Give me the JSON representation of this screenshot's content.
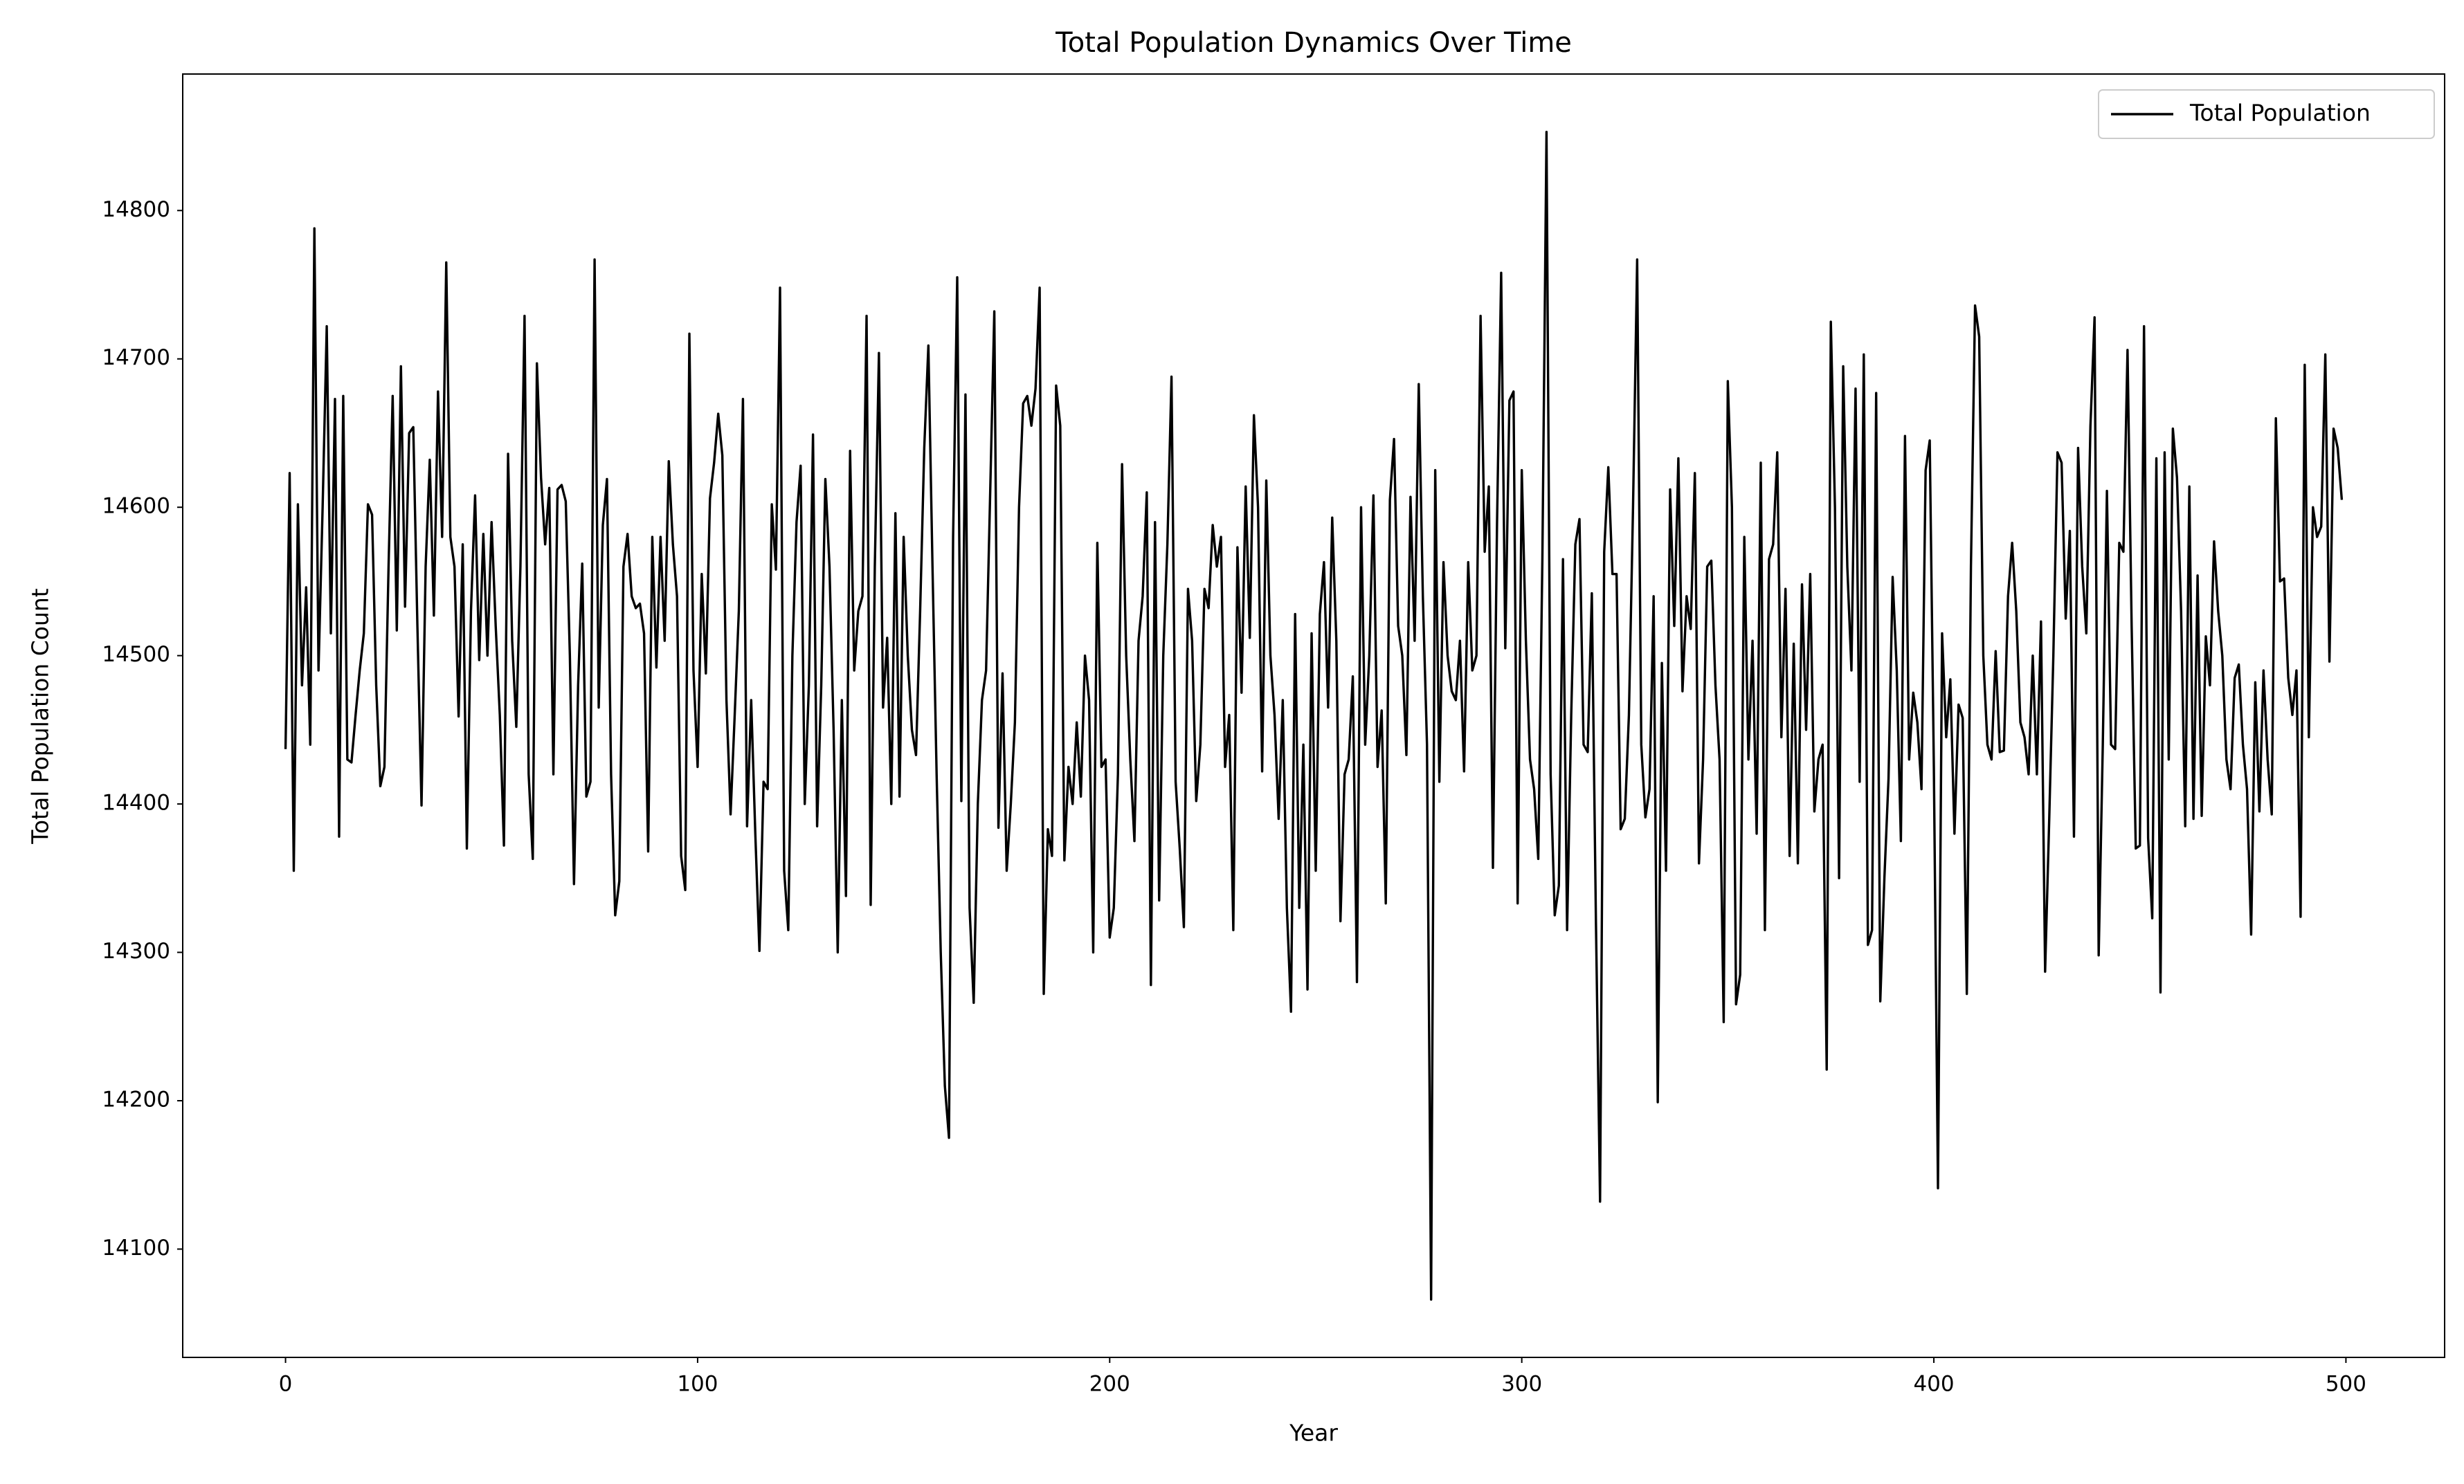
{
  "chart_data": {
    "type": "line",
    "title": "Total Population Dynamics Over Time",
    "xlabel": "Year",
    "ylabel": "Total Population Count",
    "xlim": [
      -24.95,
      523.95
    ],
    "xticks": [
      0,
      100,
      200,
      300,
      400,
      500
    ],
    "ylim": [
      14027,
      14892
    ],
    "yticks": [
      14100,
      14200,
      14300,
      14400,
      14500,
      14600,
      14700,
      14800
    ],
    "legend": "upper right",
    "x": [
      0,
      1,
      2,
      3,
      4,
      5,
      6,
      7,
      8,
      9,
      10,
      11,
      12,
      13,
      14,
      15,
      16,
      17,
      18,
      19,
      20,
      21,
      22,
      23,
      24,
      25,
      26,
      27,
      28,
      29,
      30,
      31,
      32,
      33,
      34,
      35,
      36,
      37,
      38,
      39,
      40,
      41,
      42,
      43,
      44,
      45,
      46,
      47,
      48,
      49,
      50,
      51,
      52,
      53,
      54,
      55,
      56,
      57,
      58,
      59,
      60,
      61,
      62,
      63,
      64,
      65,
      66,
      67,
      68,
      69,
      70,
      71,
      72,
      73,
      74,
      75,
      76,
      77,
      78,
      79,
      80,
      81,
      82,
      83,
      84,
      85,
      86,
      87,
      88,
      89,
      90,
      91,
      92,
      93,
      94,
      95,
      96,
      97,
      98,
      99,
      100,
      101,
      102,
      103,
      104,
      105,
      106,
      107,
      108,
      109,
      110,
      111,
      112,
      113,
      114,
      115,
      116,
      117,
      118,
      119,
      120,
      121,
      122,
      123,
      124,
      125,
      126,
      127,
      128,
      129,
      130,
      131,
      132,
      133,
      134,
      135,
      136,
      137,
      138,
      139,
      140,
      141,
      142,
      143,
      144,
      145,
      146,
      147,
      148,
      149,
      150,
      151,
      152,
      153,
      154,
      155,
      156,
      157,
      158,
      159,
      160,
      161,
      162,
      163,
      164,
      165,
      166,
      167,
      168,
      169,
      170,
      171,
      172,
      173,
      174,
      175,
      176,
      177,
      178,
      179,
      180,
      181,
      182,
      183,
      184,
      185,
      186,
      187,
      188,
      189,
      190,
      191,
      192,
      193,
      194,
      195,
      196,
      197,
      198,
      199,
      200,
      201,
      202,
      203,
      204,
      205,
      206,
      207,
      208,
      209,
      210,
      211,
      212,
      213,
      214,
      215,
      216,
      217,
      218,
      219,
      220,
      221,
      222,
      223,
      224,
      225,
      226,
      227,
      228,
      229,
      230,
      231,
      232,
      233,
      234,
      235,
      236,
      237,
      238,
      239,
      240,
      241,
      242,
      243,
      244,
      245,
      246,
      247,
      248,
      249,
      250,
      251,
      252,
      253,
      254,
      255,
      256,
      257,
      258,
      259,
      260,
      261,
      262,
      263,
      264,
      265,
      266,
      267,
      268,
      269,
      270,
      271,
      272,
      273,
      274,
      275,
      276,
      277,
      278,
      279,
      280,
      281,
      282,
      283,
      284,
      285,
      286,
      287,
      288,
      289,
      290,
      291,
      292,
      293,
      294,
      295,
      296,
      297,
      298,
      299,
      300,
      301,
      302,
      303,
      304,
      305,
      306,
      307,
      308,
      309,
      310,
      311,
      312,
      313,
      314,
      315,
      316,
      317,
      318,
      319,
      320,
      321,
      322,
      323,
      324,
      325,
      326,
      327,
      328,
      329,
      330,
      331,
      332,
      333,
      334,
      335,
      336,
      337,
      338,
      339,
      340,
      341,
      342,
      343,
      344,
      345,
      346,
      347,
      348,
      349,
      350,
      351,
      352,
      353,
      354,
      355,
      356,
      357,
      358,
      359,
      360,
      361,
      362,
      363,
      364,
      365,
      366,
      367,
      368,
      369,
      370,
      371,
      372,
      373,
      374,
      375,
      376,
      377,
      378,
      379,
      380,
      381,
      382,
      383,
      384,
      385,
      386,
      387,
      388,
      389,
      390,
      391,
      392,
      393,
      394,
      395,
      396,
      397,
      398,
      399,
      400,
      401,
      402,
      403,
      404,
      405,
      406,
      407,
      408,
      409,
      410,
      411,
      412,
      413,
      414,
      415,
      416,
      417,
      418,
      419,
      420,
      421,
      422,
      423,
      424,
      425,
      426,
      427,
      428,
      429,
      430,
      431,
      432,
      433,
      434,
      435,
      436,
      437,
      438,
      439,
      440,
      441,
      442,
      443,
      444,
      445,
      446,
      447,
      448,
      449,
      450,
      451,
      452,
      453,
      454,
      455,
      456,
      457,
      458,
      459,
      460,
      461,
      462,
      463,
      464,
      465,
      466,
      467,
      468,
      469,
      470,
      471,
      472,
      473,
      474,
      475,
      476,
      477,
      478,
      479,
      480,
      481,
      482,
      483,
      484,
      485,
      486,
      487,
      488,
      489,
      490,
      491,
      492,
      493,
      494,
      495,
      496,
      497,
      498,
      499
    ],
    "series": [
      {
        "name": "Total Population",
        "color": "#000000",
        "values": [
          14437,
          14623,
          14355,
          14602,
          14480,
          14546,
          14440,
          14788,
          14490,
          14600,
          14722,
          14515,
          14673,
          14378,
          14675,
          14430,
          14428,
          14460,
          14490,
          14515,
          14602,
          14595,
          14480,
          14412,
          14425,
          14560,
          14675,
          14517,
          14695,
          14533,
          14650,
          14654,
          14520,
          14399,
          14560,
          14632,
          14527,
          14678,
          14580,
          14765,
          14580,
          14560,
          14459,
          14575,
          14370,
          14530,
          14608,
          14497,
          14582,
          14500,
          14590,
          14520,
          14460,
          14372,
          14636,
          14510,
          14452,
          14560,
          14729,
          14420,
          14363,
          14697,
          14620,
          14575,
          14613,
          14420,
          14612,
          14615,
          14604,
          14500,
          14346,
          14480,
          14562,
          14405,
          14415,
          14767,
          14465,
          14588,
          14619,
          14420,
          14325,
          14348,
          14560,
          14582,
          14540,
          14532,
          14535,
          14515,
          14368,
          14580,
          14492,
          14580,
          14510,
          14631,
          14575,
          14540,
          14365,
          14342,
          14717,
          14490,
          14425,
          14555,
          14488,
          14606,
          14630,
          14663,
          14635,
          14470,
          14393,
          14460,
          14530,
          14673,
          14385,
          14470,
          14380,
          14301,
          14415,
          14410,
          14602,
          14558,
          14748,
          14355,
          14315,
          14500,
          14590,
          14628,
          14400,
          14480,
          14649,
          14385,
          14480,
          14619,
          14560,
          14450,
          14300,
          14470,
          14338,
          14638,
          14490,
          14530,
          14540,
          14729,
          14332,
          14560,
          14704,
          14465,
          14512,
          14400,
          14596,
          14405,
          14580,
          14500,
          14450,
          14433,
          14530,
          14640,
          14709,
          14560,
          14420,
          14300,
          14210,
          14175,
          14580,
          14755,
          14402,
          14676,
          14330,
          14266,
          14400,
          14470,
          14490,
          14610,
          14732,
          14384,
          14488,
          14355,
          14400,
          14455,
          14600,
          14670,
          14675,
          14655,
          14680,
          14748,
          14272,
          14383,
          14365,
          14682,
          14655,
          14362,
          14425,
          14400,
          14455,
          14405,
          14500,
          14470,
          14300,
          14576,
          14425,
          14430,
          14310,
          14330,
          14420,
          14629,
          14500,
          14430,
          14375,
          14510,
          14540,
          14610,
          14278,
          14590,
          14335,
          14500,
          14575,
          14688,
          14415,
          14370,
          14317,
          14545,
          14510,
          14402,
          14440,
          14545,
          14532,
          14588,
          14560,
          14580,
          14425,
          14460,
          14315,
          14573,
          14475,
          14614,
          14512,
          14662,
          14600,
          14422,
          14618,
          14500,
          14460,
          14390,
          14470,
          14330,
          14260,
          14528,
          14330,
          14440,
          14275,
          14515,
          14355,
          14528,
          14563,
          14465,
          14593,
          14510,
          14321,
          14420,
          14430,
          14486,
          14280,
          14600,
          14440,
          14500,
          14608,
          14425,
          14463,
          14333,
          14605,
          14646,
          14520,
          14500,
          14433,
          14607,
          14510,
          14683,
          14540,
          14440,
          14066,
          14625,
          14415,
          14563,
          14500,
          14476,
          14470,
          14510,
          14422,
          14563,
          14490,
          14500,
          14729,
          14570,
          14614,
          14357,
          14590,
          14758,
          14505,
          14672,
          14678,
          14333,
          14625,
          14510,
          14430,
          14410,
          14363,
          14565,
          14853,
          14420,
          14325,
          14345,
          14565,
          14315,
          14460,
          14575,
          14592,
          14440,
          14435,
          14542,
          14320,
          14132,
          14570,
          14627,
          14555,
          14555,
          14383,
          14390,
          14460,
          14600,
          14767,
          14440,
          14391,
          14410,
          14540,
          14199,
          14495,
          14355,
          14612,
          14520,
          14633,
          14476,
          14540,
          14518,
          14623,
          14360,
          14430,
          14560,
          14564,
          14480,
          14430,
          14253,
          14685,
          14600,
          14265,
          14285,
          14580,
          14430,
          14510,
          14380,
          14630,
          14315,
          14565,
          14575,
          14637,
          14445,
          14545,
          14365,
          14508,
          14360,
          14548,
          14450,
          14555,
          14395,
          14430,
          14440,
          14221,
          14725,
          14600,
          14350,
          14695,
          14560,
          14490,
          14680,
          14415,
          14703,
          14305,
          14315,
          14677,
          14267,
          14350,
          14417,
          14553,
          14490,
          14375,
          14648,
          14430,
          14475,
          14455,
          14410,
          14625,
          14645,
          14425,
          14141,
          14515,
          14445,
          14484,
          14380,
          14467,
          14458,
          14272,
          14560,
          14736,
          14715,
          14500,
          14440,
          14430,
          14503,
          14435,
          14436,
          14540,
          14576,
          14530,
          14455,
          14445,
          14420,
          14500,
          14420,
          14523,
          14287,
          14390,
          14500,
          14637,
          14630,
          14525,
          14584,
          14378,
          14640,
          14560,
          14515,
          14655,
          14728,
          14298,
          14440,
          14611,
          14440,
          14437,
          14576,
          14570,
          14706,
          14520,
          14370,
          14372,
          14722,
          14377,
          14323,
          14633,
          14273,
          14637,
          14430,
          14653,
          14620,
          14530,
          14385,
          14614,
          14390,
          14554,
          14392,
          14513,
          14480,
          14577,
          14530,
          14500,
          14430,
          14410,
          14485,
          14494,
          14440,
          14410,
          14312,
          14482,
          14395,
          14490,
          14430,
          14393,
          14660,
          14550,
          14552,
          14485,
          14460,
          14490,
          14324,
          14696,
          14445,
          14600,
          14580,
          14587,
          14703,
          14496,
          14653,
          14640,
          14605
        ]
      }
    ]
  }
}
